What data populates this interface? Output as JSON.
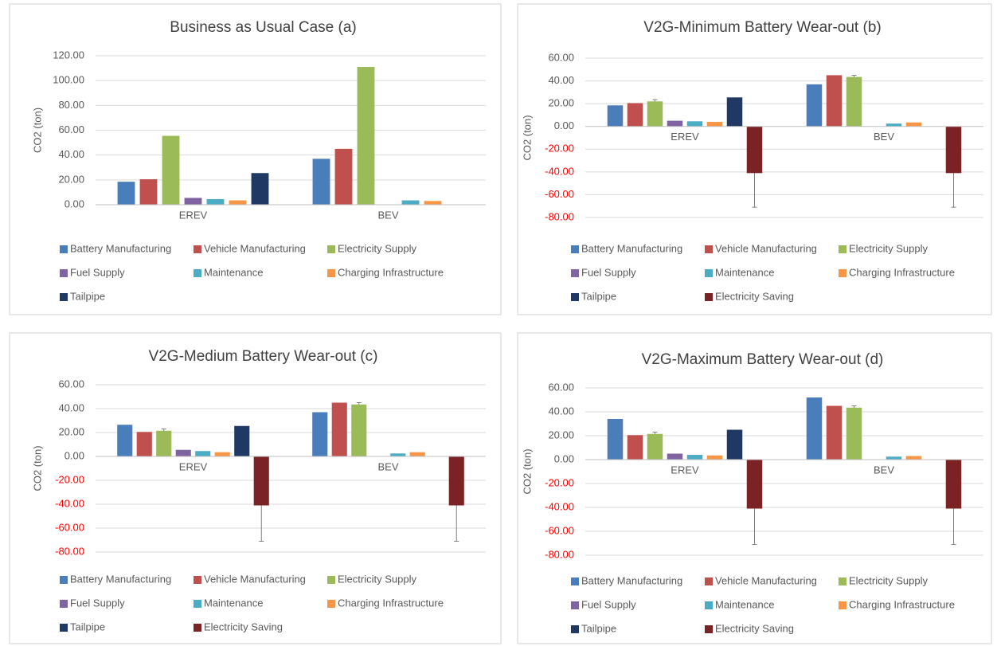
{
  "chart_data": [
    {
      "type": "bar",
      "title": "Business as Usual Case (a)",
      "ylabel": "CO2 (ton)",
      "categories": [
        "EREV",
        "BEV"
      ],
      "ylim": [
        0,
        120
      ],
      "yticks": [
        {
          "value": 0,
          "label": "0.00"
        },
        {
          "value": 20,
          "label": "20.00"
        },
        {
          "value": 40,
          "label": "40.00"
        },
        {
          "value": 60,
          "label": "60.00"
        },
        {
          "value": 80,
          "label": "80.00"
        },
        {
          "value": 100,
          "label": "100.00"
        },
        {
          "value": 120,
          "label": "120.00"
        }
      ],
      "grid": true,
      "legend": "bottom",
      "series": [
        {
          "name": "Battery Manufacturing",
          "color": "#4a7ebb",
          "values": [
            18.5,
            37
          ]
        },
        {
          "name": "Vehicle Manufacturing",
          "color": "#c0504d",
          "values": [
            20.5,
            45
          ]
        },
        {
          "name": "Electricity Supply",
          "color": "#9bbb59",
          "values": [
            55.5,
            111
          ]
        },
        {
          "name": "Fuel Supply",
          "color": "#8064a2",
          "values": [
            5.5,
            null
          ]
        },
        {
          "name": "Maintenance",
          "color": "#4bacc6",
          "values": [
            4.5,
            3.5
          ]
        },
        {
          "name": "Charging Infrastructure",
          "color": "#f79646",
          "values": [
            3.5,
            3
          ]
        },
        {
          "name": "Tailpipe",
          "color": "#1f3864",
          "values": [
            25.5,
            null
          ]
        }
      ]
    },
    {
      "type": "bar",
      "title": "V2G-Minimum Battery Wear-out (b)",
      "ylabel": "CO2 (ton)",
      "categories": [
        "EREV",
        "BEV"
      ],
      "ylim": [
        -80,
        60
      ],
      "yticks": [
        {
          "value": -80,
          "label": "-80.00"
        },
        {
          "value": -60,
          "label": "-60.00"
        },
        {
          "value": -40,
          "label": "-40.00"
        },
        {
          "value": -20,
          "label": "-20.00"
        },
        {
          "value": 0,
          "label": "0.00"
        },
        {
          "value": 20,
          "label": "20.00"
        },
        {
          "value": 40,
          "label": "40.00"
        },
        {
          "value": 60,
          "label": "60.00"
        }
      ],
      "grid": true,
      "legend": "bottom",
      "negative_tick_color": "#ff0000",
      "series": [
        {
          "name": "Battery Manufacturing",
          "color": "#4a7ebb",
          "values": [
            18.5,
            37
          ]
        },
        {
          "name": "Vehicle Manufacturing",
          "color": "#c0504d",
          "values": [
            20.5,
            45
          ]
        },
        {
          "name": "Electricity Supply",
          "color": "#9bbb59",
          "values": [
            22,
            43.5
          ],
          "errors": [
            1.5,
            1.5
          ]
        },
        {
          "name": "Fuel Supply",
          "color": "#8064a2",
          "values": [
            5,
            null
          ]
        },
        {
          "name": "Maintenance",
          "color": "#4bacc6",
          "values": [
            4.5,
            2.5
          ]
        },
        {
          "name": "Charging Infrastructure",
          "color": "#f79646",
          "values": [
            4,
            3.5
          ]
        },
        {
          "name": "Tailpipe",
          "color": "#1f3864",
          "values": [
            25.5,
            null
          ]
        },
        {
          "name": "Electricity Saving",
          "color": "#7b2324",
          "values": [
            -41,
            -41
          ],
          "errors": [
            30,
            30
          ]
        }
      ]
    },
    {
      "type": "bar",
      "title": "V2G-Medium Battery Wear-out (c)",
      "ylabel": "CO2 (ton)",
      "categories": [
        "EREV",
        "BEV"
      ],
      "ylim": [
        -80,
        60
      ],
      "yticks": [
        {
          "value": -80,
          "label": "-80.00"
        },
        {
          "value": -60,
          "label": "-60.00"
        },
        {
          "value": -40,
          "label": "-40.00"
        },
        {
          "value": -20,
          "label": "-20.00"
        },
        {
          "value": 0,
          "label": "0.00"
        },
        {
          "value": 20,
          "label": "20.00"
        },
        {
          "value": 40,
          "label": "40.00"
        },
        {
          "value": 60,
          "label": "60.00"
        }
      ],
      "grid": true,
      "legend": "bottom",
      "negative_tick_color": "#ff0000",
      "series": [
        {
          "name": "Battery Manufacturing",
          "color": "#4a7ebb",
          "values": [
            26.5,
            37
          ]
        },
        {
          "name": "Vehicle Manufacturing",
          "color": "#c0504d",
          "values": [
            20.5,
            45
          ]
        },
        {
          "name": "Electricity Supply",
          "color": "#9bbb59",
          "values": [
            21.5,
            43.5
          ],
          "errors": [
            1.5,
            1.5
          ]
        },
        {
          "name": "Fuel Supply",
          "color": "#8064a2",
          "values": [
            5.5,
            null
          ]
        },
        {
          "name": "Maintenance",
          "color": "#4bacc6",
          "values": [
            4.5,
            2.5
          ]
        },
        {
          "name": "Charging Infrastructure",
          "color": "#f79646",
          "values": [
            3.5,
            3.5
          ]
        },
        {
          "name": "Tailpipe",
          "color": "#1f3864",
          "values": [
            25.5,
            null
          ]
        },
        {
          "name": "Electricity Saving",
          "color": "#7b2324",
          "values": [
            -41,
            -41
          ],
          "errors": [
            30,
            30
          ]
        }
      ]
    },
    {
      "type": "bar",
      "title": "V2G-Maximum Battery Wear-out (d)",
      "ylabel": "CO2 (ton)",
      "categories": [
        "EREV",
        "BEV"
      ],
      "ylim": [
        -80,
        60
      ],
      "yticks": [
        {
          "value": -80,
          "label": "-80.00"
        },
        {
          "value": -60,
          "label": "-60.00"
        },
        {
          "value": -40,
          "label": "-40.00"
        },
        {
          "value": -20,
          "label": "-20.00"
        },
        {
          "value": 0,
          "label": "0.00"
        },
        {
          "value": 20,
          "label": "20.00"
        },
        {
          "value": 40,
          "label": "40.00"
        },
        {
          "value": 60,
          "label": "60.00"
        }
      ],
      "grid": true,
      "legend": "bottom",
      "negative_tick_color": "#ff0000",
      "series": [
        {
          "name": "Battery Manufacturing",
          "color": "#4a7ebb",
          "values": [
            34,
            52
          ]
        },
        {
          "name": "Vehicle Manufacturing",
          "color": "#c0504d",
          "values": [
            20.5,
            45
          ]
        },
        {
          "name": "Electricity Supply",
          "color": "#9bbb59",
          "values": [
            21.5,
            43.5
          ],
          "errors": [
            1.5,
            1.5
          ]
        },
        {
          "name": "Fuel Supply",
          "color": "#8064a2",
          "values": [
            5,
            null
          ]
        },
        {
          "name": "Maintenance",
          "color": "#4bacc6",
          "values": [
            4,
            2.5
          ]
        },
        {
          "name": "Charging Infrastructure",
          "color": "#f79646",
          "values": [
            3.5,
            3
          ]
        },
        {
          "name": "Tailpipe",
          "color": "#1f3864",
          "values": [
            25,
            null
          ]
        },
        {
          "name": "Electricity Saving",
          "color": "#7b2324",
          "values": [
            -41,
            -41
          ],
          "errors": [
            30,
            30
          ]
        }
      ]
    }
  ]
}
